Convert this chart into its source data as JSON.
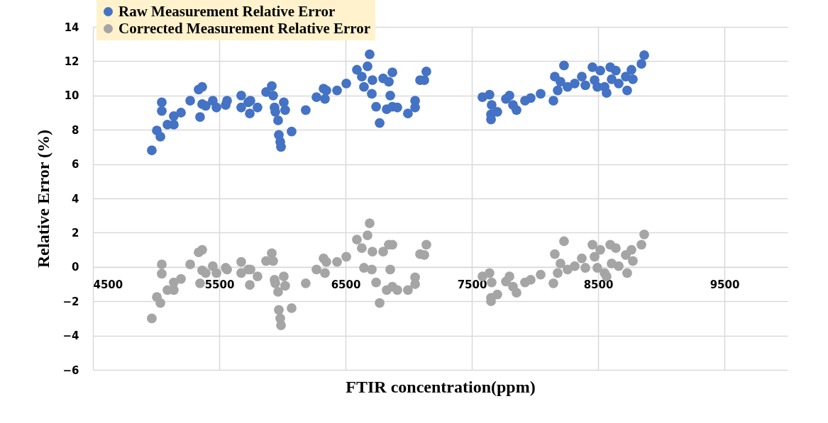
{
  "chart_data": {
    "type": "scatter",
    "xlabel": "FTIR concentration(ppm)",
    "ylabel": "Relative Error (%)",
    "xlim": [
      4500,
      10000
    ],
    "xticks": [
      4500,
      5500,
      6500,
      7500,
      8500,
      9500
    ],
    "ylim": [
      -6,
      14
    ],
    "yticks": [
      -6,
      -4,
      -2,
      0,
      2,
      4,
      6,
      8,
      10,
      12,
      14
    ],
    "grid": true,
    "legend": "top left",
    "marker": "circle",
    "series": [
      {
        "name": "Raw Measurement Relative Error",
        "color": "#4472c4",
        "x": [
          4966,
          5006,
          5034,
          5045,
          5045,
          5090,
          5140,
          5140,
          5197,
          5270,
          5337,
          5365,
          5348,
          5365,
          5393,
          5449,
          5478,
          5551,
          5562,
          5674,
          5674,
          5730,
          5742,
          5747,
          5803,
          5871,
          5916,
          5927,
          5938,
          5944,
          5966,
          5972,
          5983,
          5989,
          6011,
          6022,
          6073,
          6185,
          6270,
          6326,
          6337,
          6348,
          6433,
          6506,
          6590,
          6629,
          6646,
          6674,
          6691,
          6708,
          6713,
          6742,
          6770,
          6798,
          6826,
          6843,
          6854,
          6871,
          6871,
          6910,
          6994,
          7051,
          7051,
          7090,
          7124,
          7140,
          7584,
          7640,
          7657,
          7652,
          7652,
          7702,
          7770,
          7798,
          7826,
          7854,
          7921,
          7966,
          8045,
          8146,
          8157,
          8180,
          8230,
          8202,
          8258,
          8315,
          8371,
          8399,
          8455,
          8472,
          8494,
          8517,
          8551,
          8567,
          8596,
          8607,
          8640,
          8663,
          8719,
          8730,
          8764,
          8775,
          8843,
          8865
        ],
        "values": [
          6.8,
          7.96,
          7.6,
          9.6,
          9.1,
          8.3,
          8.3,
          8.8,
          9.0,
          9.7,
          10.35,
          10.5,
          8.75,
          9.5,
          9.4,
          9.7,
          9.3,
          9.45,
          9.7,
          9.3,
          10.0,
          9.6,
          8.95,
          9.7,
          9.3,
          10.2,
          10.55,
          10.0,
          9.3,
          9.05,
          8.55,
          7.7,
          7.3,
          7.0,
          9.6,
          9.15,
          7.9,
          9.15,
          9.9,
          10.4,
          9.8,
          10.3,
          10.3,
          10.7,
          11.5,
          11.1,
          10.5,
          11.7,
          12.4,
          10.1,
          10.9,
          9.35,
          8.4,
          11.0,
          9.2,
          10.8,
          10.0,
          11.35,
          9.35,
          9.3,
          8.95,
          9.7,
          9.3,
          10.9,
          10.9,
          11.4,
          9.9,
          10.05,
          9.45,
          8.9,
          8.6,
          9.05,
          9.8,
          10.0,
          9.45,
          9.15,
          9.7,
          9.85,
          10.1,
          9.7,
          11.1,
          10.3,
          11.75,
          10.8,
          10.5,
          10.7,
          11.1,
          10.6,
          11.65,
          10.9,
          10.5,
          11.45,
          10.5,
          10.15,
          11.65,
          10.95,
          11.45,
          10.7,
          11.1,
          10.3,
          11.5,
          10.95,
          11.85,
          12.35
        ]
      },
      {
        "name": "Corrected Measurement Relative Error",
        "color": "#a5a5a5",
        "x": [
          4966,
          5006,
          5034,
          5045,
          5045,
          5090,
          5140,
          5140,
          5197,
          5270,
          5337,
          5365,
          5348,
          5365,
          5393,
          5449,
          5478,
          5551,
          5562,
          5674,
          5674,
          5730,
          5742,
          5747,
          5803,
          5871,
          5916,
          5927,
          5938,
          5944,
          5966,
          5972,
          5983,
          5989,
          6011,
          6022,
          6073,
          6185,
          6270,
          6326,
          6337,
          6348,
          6433,
          6506,
          6590,
          6629,
          6646,
          6674,
          6691,
          6708,
          6713,
          6742,
          6770,
          6798,
          6826,
          6843,
          6854,
          6871,
          6871,
          6910,
          6994,
          7051,
          7051,
          7090,
          7124,
          7140,
          7584,
          7640,
          7657,
          7652,
          7652,
          7702,
          7770,
          7798,
          7826,
          7854,
          7921,
          7966,
          8045,
          8146,
          8157,
          8180,
          8230,
          8202,
          8258,
          8315,
          8371,
          8399,
          8455,
          8472,
          8494,
          8517,
          8551,
          8567,
          8596,
          8607,
          8640,
          8663,
          8719,
          8730,
          8764,
          8775,
          8843,
          8865
        ],
        "values": [
          -3.0,
          -1.75,
          -2.1,
          0.15,
          -0.4,
          -1.35,
          -1.35,
          -0.9,
          -0.7,
          0.15,
          0.85,
          1.0,
          -0.95,
          -0.2,
          -0.35,
          0.05,
          -0.35,
          -0.05,
          -0.15,
          -0.35,
          0.3,
          -0.15,
          -1.05,
          -0.15,
          -0.55,
          0.35,
          0.8,
          0.35,
          -0.75,
          -0.95,
          -1.45,
          -2.5,
          -3.0,
          -3.4,
          -0.55,
          -1.1,
          -2.4,
          -0.95,
          -0.15,
          0.5,
          -0.35,
          0.3,
          0.3,
          0.6,
          1.6,
          1.1,
          -0.05,
          1.85,
          2.55,
          -0.15,
          0.9,
          -0.9,
          -2.1,
          0.9,
          -1.35,
          1.3,
          -0.15,
          1.3,
          -1.15,
          -1.35,
          -1.35,
          -0.6,
          -1.0,
          0.75,
          0.7,
          1.3,
          -0.55,
          -0.35,
          -0.9,
          -1.8,
          -2.0,
          -1.6,
          -0.85,
          -0.55,
          -1.15,
          -1.5,
          -0.9,
          -0.75,
          -0.45,
          -0.95,
          0.75,
          -0.35,
          1.5,
          0.2,
          -0.15,
          0.05,
          0.5,
          -0.05,
          1.3,
          0.6,
          -0.05,
          1.0,
          -0.35,
          -0.55,
          1.3,
          0.2,
          1.1,
          0.05,
          0.7,
          -0.35,
          1.0,
          0.35,
          1.3,
          1.9
        ]
      }
    ]
  }
}
